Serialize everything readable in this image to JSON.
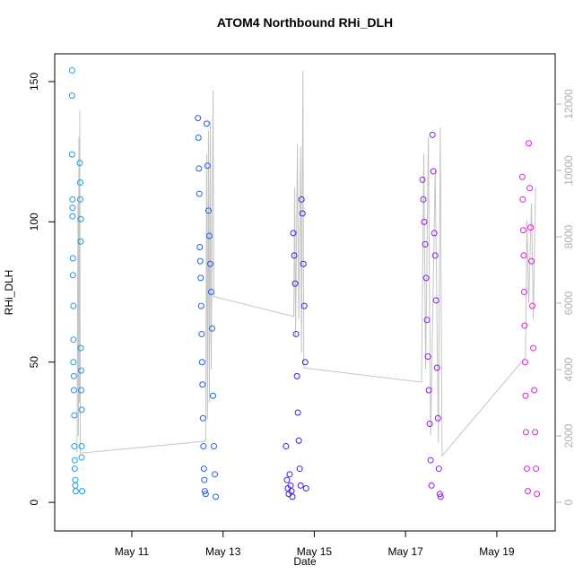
{
  "chart_data": {
    "type": "scatter",
    "title": "ATOM4 Northbound RHi_DLH",
    "xlabel": "Date",
    "ylabel": "RHi_DLH",
    "xlim": [
      9.31,
      20.28
    ],
    "xticks": [
      {
        "value": 11,
        "label": "May 11"
      },
      {
        "value": 13,
        "label": "May 13"
      },
      {
        "value": 15,
        "label": "May 15"
      },
      {
        "value": 17,
        "label": "May 17"
      },
      {
        "value": 19,
        "label": "May 19"
      }
    ],
    "ylim": [
      -10.2,
      159.9
    ],
    "yticks": [
      0,
      50,
      100,
      150
    ],
    "y2lim": [
      -865,
      13514
    ],
    "y2ticks": [
      0,
      2000,
      4000,
      6000,
      8000,
      10000,
      12000
    ],
    "series": [
      {
        "color": "#1e9be6",
        "x": [
          9.69,
          9.69,
          9.69,
          9.7,
          9.7,
          9.7,
          9.71,
          9.71,
          9.72,
          9.72,
          9.72,
          9.73,
          9.73,
          9.74,
          9.74,
          9.75,
          9.75,
          9.76,
          9.76,
          9.77,
          9.86,
          9.87,
          9.87,
          9.88,
          9.88,
          9.88,
          9.89,
          9.89,
          9.9,
          9.9,
          9.9,
          9.91
        ],
        "values": [
          154,
          145,
          124,
          105,
          108,
          102,
          87,
          81,
          70,
          58,
          50,
          45,
          40,
          31,
          20,
          15,
          12,
          8,
          6,
          4,
          121,
          114,
          108,
          101,
          93,
          55,
          47,
          40,
          33,
          20,
          16,
          4
        ]
      },
      {
        "color": "#1f5fea",
        "x": [
          12.45,
          12.46,
          12.47,
          12.48,
          12.49,
          12.5,
          12.51,
          12.52,
          12.53,
          12.54,
          12.55,
          12.56,
          12.57,
          12.58,
          12.59,
          12.6,
          12.62,
          12.64,
          12.66,
          12.68,
          12.7,
          12.72,
          12.74,
          12.76,
          12.78,
          12.8,
          12.82,
          12.84
        ],
        "values": [
          137,
          130,
          119,
          110,
          91,
          86,
          80,
          70,
          60,
          50,
          42,
          30,
          20,
          12,
          8,
          4,
          3,
          135,
          120,
          104,
          95,
          85,
          75,
          62,
          38,
          20,
          10,
          2
        ]
      },
      {
        "color": "#3a20e8",
        "x": [
          14.38,
          14.4,
          14.42,
          14.44,
          14.46,
          14.48,
          14.5,
          14.52,
          14.54,
          14.56,
          14.58,
          14.6,
          14.62,
          14.64,
          14.66,
          14.68,
          14.7,
          14.72,
          14.74,
          14.76,
          14.78,
          14.8,
          14.82
        ],
        "values": [
          20,
          8,
          5,
          3,
          10,
          6,
          4,
          2,
          96,
          88,
          78,
          60,
          45,
          32,
          22,
          12,
          6,
          108,
          103,
          85,
          70,
          50,
          5
        ]
      },
      {
        "color": "#8a1ee8",
        "x": [
          17.37,
          17.39,
          17.41,
          17.43,
          17.45,
          17.47,
          17.49,
          17.51,
          17.53,
          17.55,
          17.57,
          17.59,
          17.61,
          17.63,
          17.65,
          17.67,
          17.69,
          17.71,
          17.73,
          17.75,
          17.77
        ],
        "values": [
          115,
          108,
          100,
          92,
          80,
          65,
          52,
          40,
          28,
          15,
          6,
          131,
          118,
          96,
          88,
          72,
          48,
          30,
          12,
          3,
          2
        ]
      },
      {
        "color": "#e01ee0",
        "x": [
          19.56,
          19.57,
          19.58,
          19.59,
          19.6,
          19.61,
          19.62,
          19.63,
          19.64,
          19.66,
          19.68,
          19.7,
          19.72,
          19.74,
          19.76,
          19.78,
          19.8,
          19.82,
          19.84,
          19.86,
          19.88
        ],
        "values": [
          116,
          108,
          97,
          88,
          75,
          63,
          50,
          38,
          25,
          12,
          4,
          128,
          112,
          98,
          86,
          70,
          55,
          40,
          25,
          12,
          3
        ]
      },
      {
        "type": "line",
        "axis": "y2",
        "color": "#c4c4c4",
        "x": [
          9.8,
          9.82,
          9.83,
          9.84,
          9.85,
          9.86,
          9.87,
          12.62,
          12.64,
          12.66,
          12.68,
          12.7,
          12.72,
          12.74,
          12.78,
          12.8,
          14.55,
          14.57,
          14.59,
          14.63,
          14.66,
          14.7,
          14.72,
          14.75,
          14.77,
          17.35,
          17.4,
          17.44,
          17.5,
          17.55,
          17.65,
          17.72,
          17.76,
          17.8,
          19.63,
          19.66,
          19.7,
          19.76,
          19.8,
          19.85
        ],
        "values": [
          1500,
          9000,
          2000,
          11000,
          3000,
          11800,
          1480,
          1840,
          10500,
          2500,
          11200,
          3000,
          11500,
          4000,
          12400,
          6200,
          5600,
          9500,
          5000,
          10800,
          5500,
          10700,
          4500,
          13000,
          4050,
          3620,
          10500,
          4000,
          11000,
          2000,
          10000,
          1800,
          11300,
          1400,
          4370,
          8500,
          6000,
          9000,
          5500,
          9500
        ]
      }
    ]
  }
}
